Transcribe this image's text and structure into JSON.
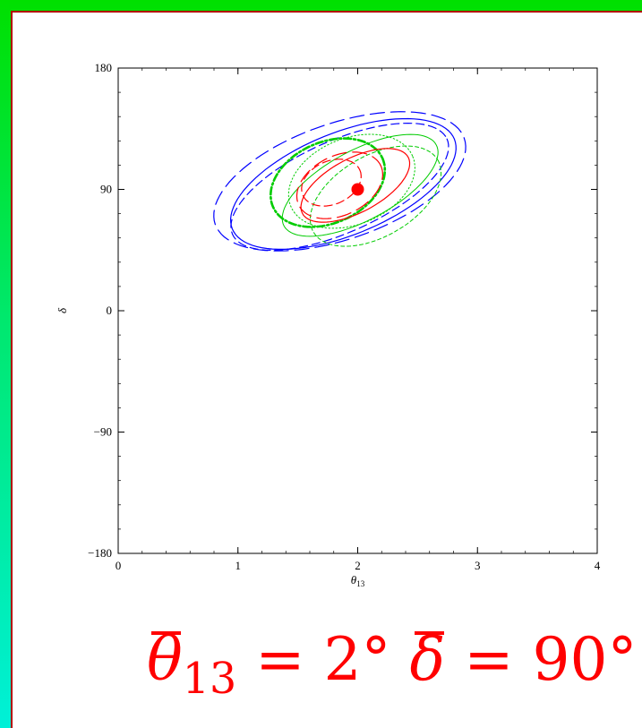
{
  "chart_data": {
    "type": "contour",
    "xlabel": "θ",
    "xlabel_sub": "13",
    "ylabel": "δ",
    "xlim": [
      0,
      4
    ],
    "ylim": [
      -180,
      180
    ],
    "x_ticks": [
      0,
      1,
      2,
      3,
      4
    ],
    "x_tick_labels": [
      "0",
      "1",
      "2",
      "3",
      "4"
    ],
    "y_ticks": [
      -180,
      -90,
      0,
      90,
      180
    ],
    "y_tick_labels": [
      "−180",
      "−90",
      "0",
      "90",
      "180"
    ],
    "true_point": {
      "x": 2.0,
      "y": 90
    },
    "series": [
      {
        "color": "#0000ff",
        "style": "solid",
        "width": 1.2,
        "cx": 1.88,
        "cy": 94,
        "rx": 1.0,
        "ry": 38,
        "angle": 22
      },
      {
        "color": "#0000ff",
        "style": "longdash",
        "width": 1.2,
        "cx": 1.85,
        "cy": 96,
        "rx": 1.1,
        "ry": 43,
        "angle": 19
      },
      {
        "color": "#0000ff",
        "style": "dash",
        "width": 1.2,
        "cx": 1.85,
        "cy": 92,
        "rx": 0.98,
        "ry": 34,
        "angle": 24
      },
      {
        "color": "#00cc00",
        "style": "solid",
        "width": 1.0,
        "cx": 2.02,
        "cy": 93,
        "rx": 0.72,
        "ry": 26,
        "angle": 28
      },
      {
        "color": "#00cc00",
        "style": "dotdash",
        "width": 2.6,
        "cx": 1.75,
        "cy": 95,
        "rx": 0.5,
        "ry": 30,
        "angle": 24
      },
      {
        "color": "#00cc00",
        "style": "shortdash",
        "width": 1.0,
        "cx": 2.15,
        "cy": 85,
        "rx": 0.6,
        "ry": 30,
        "angle": 30
      },
      {
        "color": "#00cc00",
        "style": "dotted",
        "width": 1.0,
        "cx": 1.95,
        "cy": 96,
        "rx": 0.55,
        "ry": 32,
        "angle": 22
      },
      {
        "color": "#ff0000",
        "style": "solid",
        "width": 1.2,
        "cx": 1.98,
        "cy": 93,
        "rx": 0.5,
        "ry": 20,
        "angle": 28
      },
      {
        "color": "#ff0000",
        "style": "longdash",
        "width": 1.2,
        "cx": 1.85,
        "cy": 93,
        "rx": 0.38,
        "ry": 22,
        "angle": 26
      },
      {
        "color": "#ff0000",
        "style": "dash",
        "width": 1.2,
        "cx": 1.78,
        "cy": 95,
        "rx": 0.26,
        "ry": 16,
        "angle": 24
      }
    ]
  },
  "caption": {
    "theta_symbol": "θ",
    "theta_sub": "13",
    "theta_value": "= 2°",
    "delta_symbol": "δ",
    "delta_value": "= 90°"
  }
}
